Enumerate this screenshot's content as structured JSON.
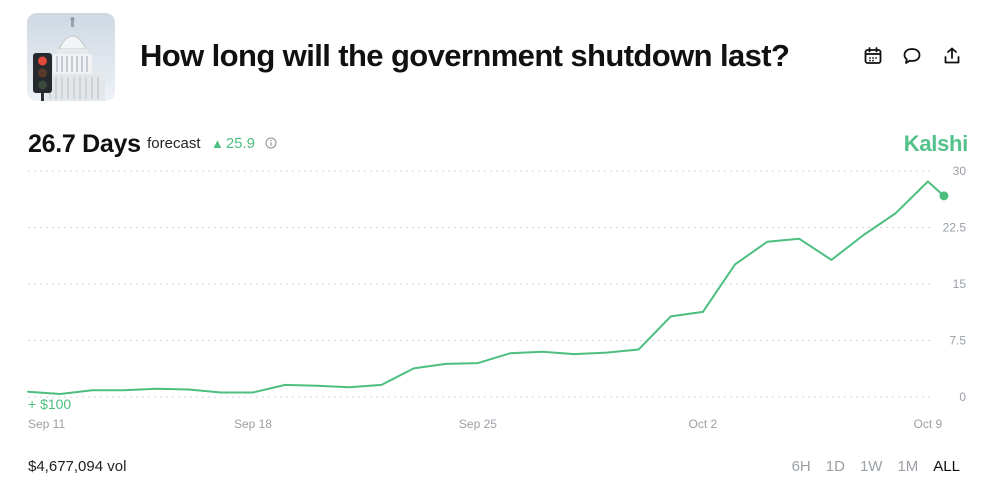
{
  "header": {
    "title": "How long will the government shutdown last?",
    "thumbnail_icon": "capitol-traffic-light-image",
    "actions": [
      {
        "name": "calendar-icon"
      },
      {
        "name": "comment-icon"
      },
      {
        "name": "share-icon"
      }
    ]
  },
  "forecast": {
    "value_text": "26.7 Days",
    "label": "forecast",
    "change_text": "25.9",
    "change_direction": "up",
    "info_icon": "info-icon"
  },
  "brand": {
    "name": "Kalshi",
    "color": "#52c28a"
  },
  "annotation": {
    "text": "+ $100"
  },
  "chart_data": {
    "type": "line",
    "title": "",
    "xlabel": "",
    "ylabel": "",
    "x_ticks": [
      "Sep 11",
      "Sep 18",
      "Sep 25",
      "Oct 2",
      "Oct 9"
    ],
    "y_ticks": [
      "30",
      "22.5",
      "15",
      "7.5",
      "0"
    ],
    "y_tick_values": [
      30,
      22.5,
      15,
      7.5,
      0
    ],
    "xlim": [
      "Sep 11",
      "Oct 10"
    ],
    "ylim": [
      0,
      30
    ],
    "grid": true,
    "line_color": "#4cbf80",
    "series": [
      {
        "values": [
          [
            "Sep 11",
            0.7
          ],
          [
            "Sep 12",
            0.4
          ],
          [
            "Sep 13",
            0.9
          ],
          [
            "Sep 14",
            0.9
          ],
          [
            "Sep 15",
            1.1
          ],
          [
            "Sep 16",
            1.0
          ],
          [
            "Sep 17",
            0.6
          ],
          [
            "Sep 18",
            0.6
          ],
          [
            "Sep 19",
            1.6
          ],
          [
            "Sep 20",
            1.5
          ],
          [
            "Sep 21",
            1.3
          ],
          [
            "Sep 22",
            1.6
          ],
          [
            "Sep 23",
            3.8
          ],
          [
            "Sep 24",
            4.4
          ],
          [
            "Sep 25",
            4.5
          ],
          [
            "Sep 26",
            5.8
          ],
          [
            "Sep 27",
            6.0
          ],
          [
            "Sep 28",
            5.7
          ],
          [
            "Sep 29",
            5.9
          ],
          [
            "Sep 30",
            6.3
          ],
          [
            "Oct 1",
            10.7
          ],
          [
            "Oct 2",
            11.3
          ],
          [
            "Oct 3",
            17.6
          ],
          [
            "Oct 4",
            20.6
          ],
          [
            "Oct 5",
            21.0
          ],
          [
            "Oct 6",
            18.2
          ],
          [
            "Oct 7",
            21.5
          ],
          [
            "Oct 8",
            24.4
          ],
          [
            "Oct 9",
            28.6
          ],
          [
            "Oct 9.5",
            26.7
          ]
        ]
      }
    ]
  },
  "footer": {
    "volume_text": "$4,677,094 vol",
    "ranges": [
      "6H",
      "1D",
      "1W",
      "1M",
      "ALL"
    ],
    "active_range": "ALL"
  }
}
